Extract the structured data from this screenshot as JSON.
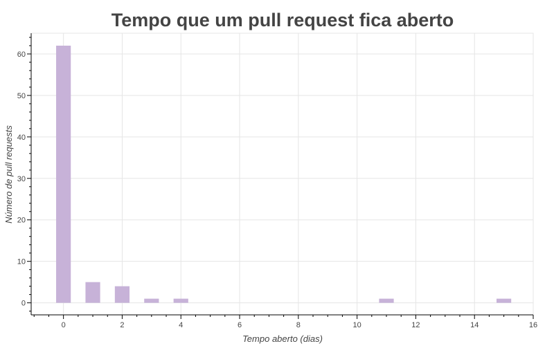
{
  "chart_data": {
    "type": "bar",
    "title": "Tempo que um pull request fica aberto",
    "xlabel": "Tempo aberto (dias)",
    "ylabel": "Número de pull requests",
    "x": [
      0,
      1,
      2,
      3,
      4,
      11,
      15
    ],
    "values": [
      62,
      5,
      4,
      1,
      1,
      1,
      1
    ],
    "bar_width_days": 0.5,
    "xlim": [
      -1.1,
      16
    ],
    "ylim": [
      -2.9,
      65
    ],
    "xticks": [
      0,
      2,
      4,
      6,
      8,
      10,
      12,
      14,
      16
    ],
    "yticks": [
      0,
      10,
      20,
      30,
      40,
      50,
      60
    ],
    "grid": true,
    "bar_color": "#c7b2d8",
    "legend": "none"
  }
}
